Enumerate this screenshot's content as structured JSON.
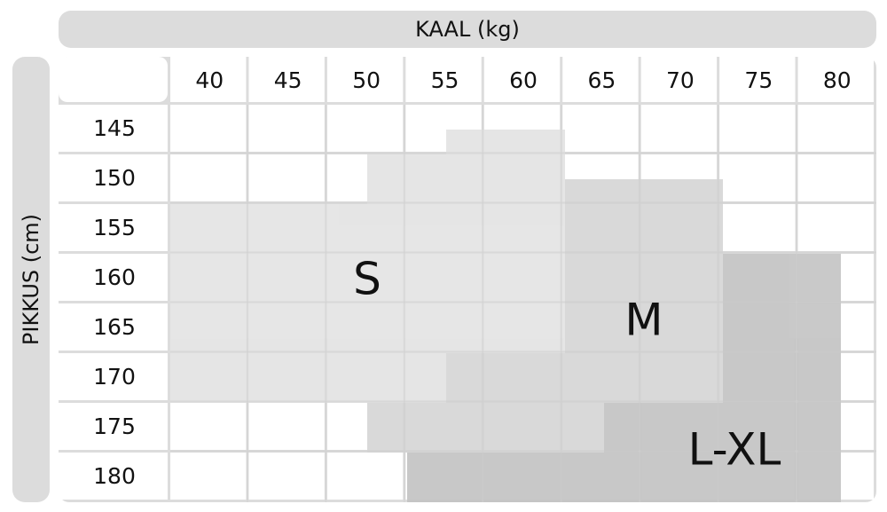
{
  "header": {
    "weight_title": "KAAL (kg)",
    "height_title": "PIKKUS (cm)"
  },
  "table": {
    "columns": [
      "40",
      "45",
      "50",
      "55",
      "60",
      "65",
      "70",
      "75",
      "80"
    ],
    "rows": [
      "145",
      "150",
      "155",
      "160",
      "165",
      "170",
      "175",
      "180"
    ]
  },
  "sizes": [
    "S",
    "M",
    "L-XL"
  ]
}
